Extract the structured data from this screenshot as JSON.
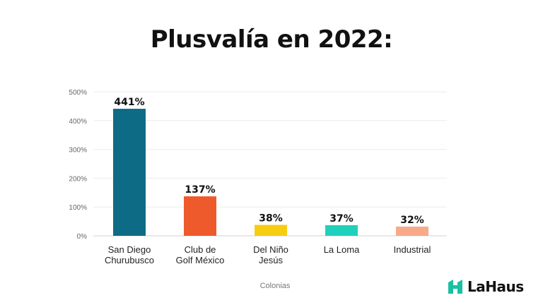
{
  "chart_data": {
    "type": "bar",
    "title": "Plusvalía en 2022:",
    "categories": [
      [
        "San Diego",
        "Churubusco"
      ],
      [
        "Club de",
        "Golf México"
      ],
      [
        "Del Niño",
        "Jesús"
      ],
      [
        "La Loma"
      ],
      [
        "Industrial"
      ]
    ],
    "values": [
      441,
      137,
      38,
      37,
      32
    ],
    "value_labels": [
      "441%",
      "137%",
      "38%",
      "37%",
      "32%"
    ],
    "colors": [
      "#0e6b85",
      "#ee5a2c",
      "#f6cd13",
      "#1fd1ba",
      "#f8a98a"
    ],
    "xlabel": "Colonias",
    "ylabel": "",
    "ylim": [
      0,
      500
    ],
    "yticks": [
      0,
      100,
      200,
      300,
      400,
      500
    ],
    "ytick_labels": [
      "0%",
      "100%",
      "200%",
      "300%",
      "400%",
      "500%"
    ],
    "grid": true
  },
  "brand": {
    "name": "LaHaus",
    "icon": "house-logo-icon",
    "color": "#1ac0a4"
  }
}
